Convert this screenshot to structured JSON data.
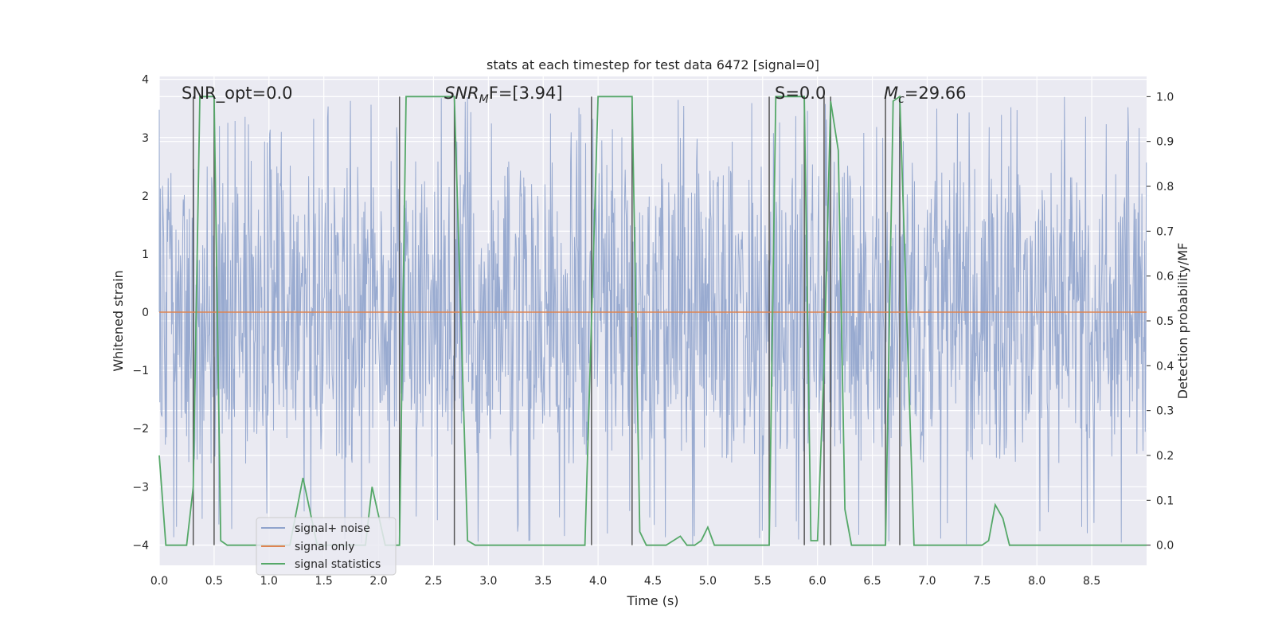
{
  "chart_data": {
    "type": "line",
    "title": "stats at each timestep for test data 6472 [signal=0]",
    "xlabel": "Time (s)",
    "ylabel": "Whitened strain",
    "ylabel_right": "Detection probability/MF",
    "xlim": [
      0.0,
      9.0
    ],
    "ylim_left": [
      -4.35,
      4.05
    ],
    "ylim_right": [
      -0.045,
      1.045
    ],
    "x_ticks": [
      0.0,
      0.5,
      1.0,
      1.5,
      2.0,
      2.5,
      3.0,
      3.5,
      4.0,
      4.5,
      5.0,
      5.5,
      6.0,
      6.5,
      7.0,
      7.5,
      8.0,
      8.5
    ],
    "x_tick_labels": [
      "0.0",
      "0.5",
      "1.0",
      "1.5",
      "2.0",
      "2.5",
      "3.0",
      "3.5",
      "4.0",
      "4.5",
      "5.0",
      "5.5",
      "6.0",
      "6.5",
      "7.0",
      "7.5",
      "8.0",
      "8.5"
    ],
    "y_ticks_left": [
      4,
      3,
      2,
      1,
      0,
      -1,
      -2,
      -3,
      -4
    ],
    "y_tick_labels_left": [
      "4",
      "3",
      "2",
      "1",
      "0",
      "−1",
      "−2",
      "−3",
      "−4"
    ],
    "y_ticks_right": [
      1.0,
      0.9,
      0.8,
      0.7,
      0.6,
      0.5,
      0.4,
      0.3,
      0.2,
      0.1,
      0.0
    ],
    "y_tick_labels_right": [
      "1.0",
      "0.9",
      "0.8",
      "0.7",
      "0.6",
      "0.5",
      "0.4",
      "0.3",
      "0.2",
      "0.1",
      "0.0"
    ],
    "grid": true,
    "legend_position": "lower-left",
    "annotations": {
      "snr_opt": "SNR_opt=0.0",
      "snr_mf_prefix": "SNR",
      "snr_mf_sub": "M",
      "snr_mf_suffix": "F=[3.94]",
      "s_value": "S=0.0",
      "mc_prefix": "M",
      "mc_sub": "c",
      "mc_suffix": "=29.66"
    },
    "series": [
      {
        "name": "signal+ noise",
        "color": "#8fa3cc",
        "axis": "left",
        "description_range": [
          -4.0,
          3.7
        ],
        "envelope": {
          "typical_low": -1.8,
          "typical_high": 1.8,
          "spike_low": -4.0,
          "spike_high": 3.7
        }
      },
      {
        "name": "signal only",
        "color": "#dd8452",
        "axis": "left",
        "x": [
          0.0,
          9.0
        ],
        "y": [
          0.0,
          0.0
        ]
      },
      {
        "name": "signal statistics",
        "color": "#55a868",
        "axis": "right",
        "x": [
          0.0,
          0.06,
          0.25,
          0.31,
          0.37,
          0.5,
          0.56,
          0.62,
          1.19,
          1.31,
          1.44,
          1.88,
          1.94,
          2.06,
          2.19,
          2.25,
          2.69,
          2.81,
          2.88,
          3.88,
          4.0,
          4.31,
          4.38,
          4.44,
          4.62,
          4.75,
          4.81,
          4.88,
          4.94,
          5.0,
          5.06,
          5.56,
          5.62,
          5.88,
          5.94,
          6.0,
          6.06,
          6.12,
          6.19,
          6.25,
          6.31,
          6.62,
          6.69,
          6.75,
          6.88,
          7.5,
          7.56,
          7.62,
          7.69,
          7.75,
          9.0
        ],
        "y": [
          0.2,
          0.0,
          0.0,
          0.13,
          1.0,
          1.0,
          0.01,
          0.0,
          0.0,
          0.15,
          0.0,
          0.0,
          0.13,
          0.0,
          0.0,
          1.0,
          1.0,
          0.01,
          0.0,
          0.0,
          1.0,
          1.0,
          0.03,
          0.0,
          0.0,
          0.02,
          0.0,
          0.0,
          0.01,
          0.04,
          0.0,
          0.0,
          1.0,
          1.0,
          0.01,
          0.01,
          0.4,
          0.99,
          0.88,
          0.08,
          0.0,
          0.0,
          0.99,
          1.0,
          0.0,
          0.0,
          0.01,
          0.09,
          0.06,
          0.0,
          0.0
        ]
      }
    ],
    "vertical_lines_x": [
      0.31,
      0.5,
      2.19,
      2.69,
      3.94,
      4.31,
      5.56,
      5.88,
      6.06,
      6.12,
      6.62,
      6.75
    ]
  }
}
